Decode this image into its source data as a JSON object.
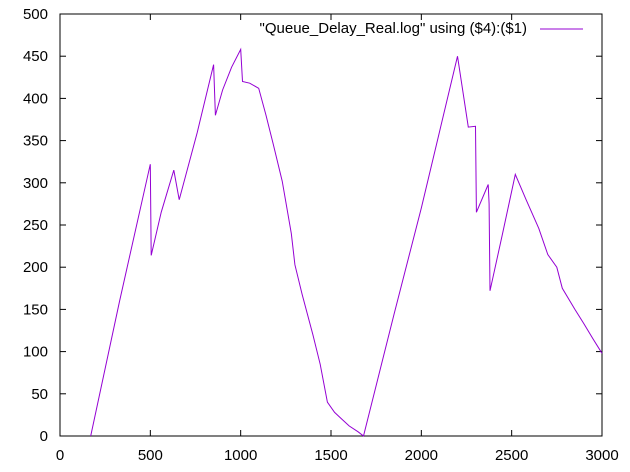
{
  "chart_data": {
    "type": "line",
    "title": "",
    "xlabel": "",
    "ylabel": "",
    "xlim": [
      0,
      3000
    ],
    "ylim": [
      0,
      500
    ],
    "xticks": [
      0,
      500,
      1000,
      1500,
      2000,
      2500,
      3000
    ],
    "yticks": [
      0,
      50,
      100,
      150,
      200,
      250,
      300,
      350,
      400,
      450,
      500
    ],
    "grid": false,
    "legend_position": "top-right",
    "series": [
      {
        "name": "\"Queue_Delay_Real.log\" using ($4):($1)",
        "color": "#9400d3",
        "x": [
          170,
          330,
          500,
          505,
          560,
          630,
          660,
          760,
          850,
          860,
          900,
          950,
          1000,
          1010,
          1050,
          1100,
          1140,
          1180,
          1230,
          1280,
          1300,
          1340,
          1400,
          1440,
          1480,
          1520,
          1560,
          1600,
          1650,
          1680,
          1850,
          2000,
          2100,
          2200,
          2260,
          2300,
          2305,
          2370,
          2375,
          2380,
          2450,
          2520,
          2580,
          2650,
          2700,
          2750,
          2780,
          2850,
          2900,
          2950,
          3000
        ],
        "y": [
          0,
          160,
          322,
          214,
          265,
          315,
          280,
          360,
          440,
          380,
          410,
          437,
          458,
          420,
          418,
          412,
          380,
          346,
          302,
          240,
          203,
          168,
          120,
          85,
          40,
          28,
          20,
          12,
          5,
          0,
          145,
          270,
          360,
          450,
          366,
          367,
          265,
          298,
          275,
          172,
          240,
          310,
          280,
          246,
          215,
          200,
          175,
          150,
          133,
          115,
          98
        ]
      }
    ]
  }
}
